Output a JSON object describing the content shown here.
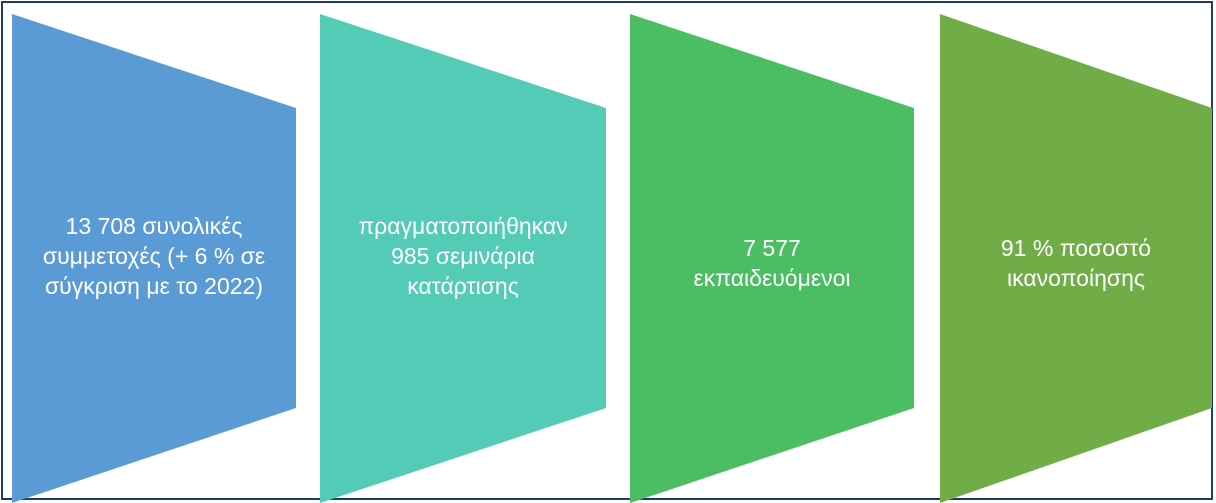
{
  "stages": [
    {
      "lines": [
        "13 708 συνολικές",
        "συμμετοχές (+ 6 % σε",
        "σύγκριση με το 2022)"
      ],
      "color": "#5b9bd5"
    },
    {
      "lines": [
        "πραγματοποιήθηκαν",
        "985 σεμινάρια",
        "κατάρτισης"
      ],
      "color": "#53cbb6"
    },
    {
      "lines": [
        "7 577",
        "εκπαιδευόμενοι"
      ],
      "color": "#4bbd62"
    },
    {
      "lines": [
        "91 % ποσοστό",
        "ικανοποίησης"
      ],
      "color": "#70ad47"
    }
  ],
  "border_color": "#1f3b66"
}
